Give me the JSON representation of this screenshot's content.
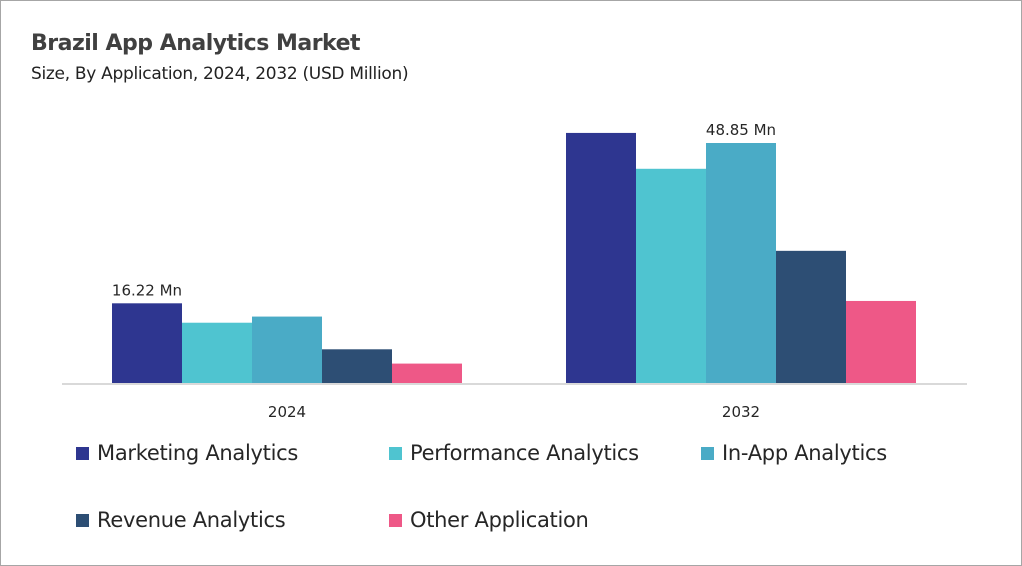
{
  "chart_data": {
    "type": "bar",
    "title": "Brazil App Analytics Market",
    "subtitle": "Size, By Application, 2024, 2032 (USD Million)",
    "categories": [
      "2024",
      "2032"
    ],
    "series": [
      {
        "name": "Marketing Analytics",
        "color": "#2e3690",
        "values": [
          16.22,
          50.9
        ]
      },
      {
        "name": "Performance Analytics",
        "color": "#4fc4d0",
        "values": [
          12.27,
          43.6
        ]
      },
      {
        "name": "In-App Analytics",
        "color": "#4aabc6",
        "values": [
          13.52,
          48.85
        ]
      },
      {
        "name": "Revenue Analytics",
        "color": "#2d4e74",
        "values": [
          6.86,
          26.9
        ]
      },
      {
        "name": "Other Application",
        "color": "#ee5887",
        "values": [
          3.95,
          16.7
        ]
      }
    ],
    "data_labels": [
      {
        "category": "2024",
        "series": "Marketing Analytics",
        "text": "16.22 Mn"
      },
      {
        "category": "2032",
        "series": "In-App Analytics",
        "text": "48.85 Mn"
      }
    ],
    "ylim": [
      0,
      52
    ],
    "grid": false,
    "legend": "bottom",
    "xlabel": "",
    "ylabel": ""
  }
}
